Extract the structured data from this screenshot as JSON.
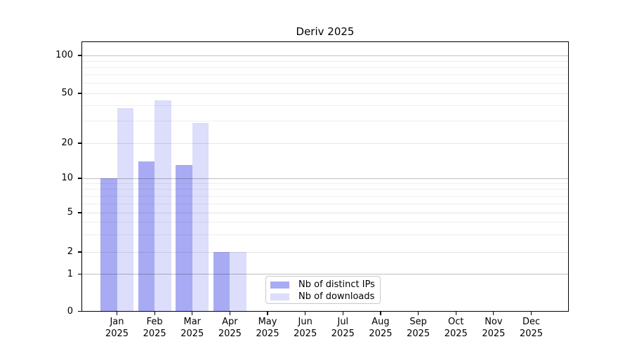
{
  "chart_data": {
    "type": "bar",
    "title": "Deriv 2025",
    "categories": [
      "Jan",
      "Feb",
      "Mar",
      "Apr",
      "May",
      "Jun",
      "Jul",
      "Aug",
      "Sep",
      "Oct",
      "Nov",
      "Dec"
    ],
    "year_label": "2025",
    "series": [
      {
        "name": "Nb of distinct IPs",
        "color": "#a8abf3",
        "values": [
          10,
          14,
          13,
          2,
          0,
          0,
          0,
          0,
          0,
          0,
          0,
          0
        ]
      },
      {
        "name": "Nb of downloads",
        "color": "#dcdefb",
        "values": [
          38,
          44,
          29,
          2,
          0,
          0,
          0,
          0,
          0,
          0,
          0,
          0
        ]
      }
    ],
    "yticks": [
      0,
      1,
      2,
      5,
      10,
      20,
      50,
      100
    ],
    "yscale": "log-like (symlog, linear below 1)",
    "ylim": [
      0,
      130
    ],
    "xlabel": "",
    "ylabel": "",
    "grid": "horizontal, major at powers of 10 plus faint minors",
    "legend_position": "inside plot, bottom left-of-center"
  },
  "colors": {
    "bar_distinct_ips": "#a8abf3",
    "bar_downloads": "#dcdefb",
    "grid_major": "rgba(0,0,0,0.25)",
    "grid_labeled_minor": "rgba(0,0,0,0.10)",
    "grid_minor": "rgba(0,0,0,0.065)",
    "axis": "#000000",
    "background": "#ffffff"
  }
}
